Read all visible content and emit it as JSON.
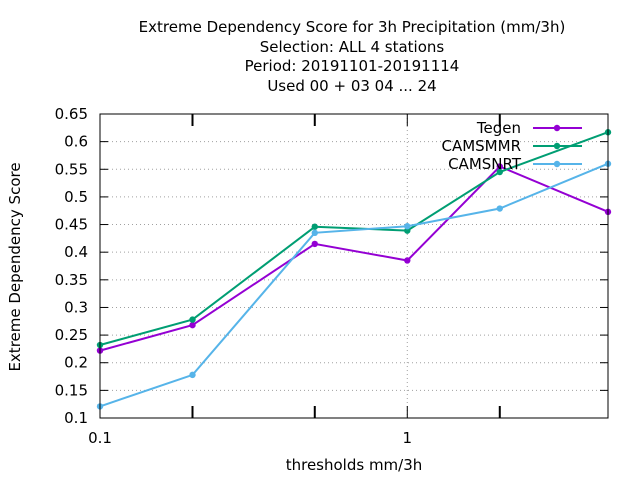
{
  "chart_data": {
    "type": "line",
    "title_lines": [
      "Extreme Dependency Score  for 3h Precipitation (mm/3h)",
      "Selection: ALL      4 stations",
      "Period: 20191101-20191114",
      "Used  00 + 03 04 ... 24"
    ],
    "xlabel": "thresholds mm/3h",
    "ylabel": "Extreme Dependency Score",
    "x_scale": "log",
    "xlim": [
      0.1,
      4.5
    ],
    "ylim": [
      0.1,
      0.65
    ],
    "x_tick_labels": [
      {
        "value": 0.1,
        "label": "0.1"
      },
      {
        "value": 1,
        "label": "1"
      }
    ],
    "x_minor_ticks": [
      0.2,
      0.5,
      2
    ],
    "y_ticks": [
      {
        "value": 0.1,
        "label": "0.1"
      },
      {
        "value": 0.15,
        "label": "0.15"
      },
      {
        "value": 0.2,
        "label": "0.2"
      },
      {
        "value": 0.25,
        "label": "0.25"
      },
      {
        "value": 0.3,
        "label": "0.3"
      },
      {
        "value": 0.35,
        "label": "0.35"
      },
      {
        "value": 0.4,
        "label": "0.4"
      },
      {
        "value": 0.45,
        "label": "0.45"
      },
      {
        "value": 0.5,
        "label": "0.5"
      },
      {
        "value": 0.55,
        "label": "0.55"
      },
      {
        "value": 0.6,
        "label": "0.6"
      },
      {
        "value": 0.65,
        "label": "0.65"
      }
    ],
    "grid": true,
    "legend_position": "top-right",
    "x": [
      0.1,
      0.2,
      0.5,
      1,
      2,
      4.5
    ],
    "series": [
      {
        "name": "Tegen",
        "color": "#9400d3",
        "values": [
          0.222,
          0.268,
          0.415,
          0.385,
          0.555,
          0.473
        ]
      },
      {
        "name": "CAMSMMR",
        "color": "#009e73",
        "values": [
          0.232,
          0.278,
          0.446,
          0.439,
          0.545,
          0.617
        ]
      },
      {
        "name": "CAMSNRT",
        "color": "#56b4e9",
        "values": [
          0.121,
          0.178,
          0.435,
          0.447,
          0.479,
          0.56
        ]
      }
    ]
  }
}
